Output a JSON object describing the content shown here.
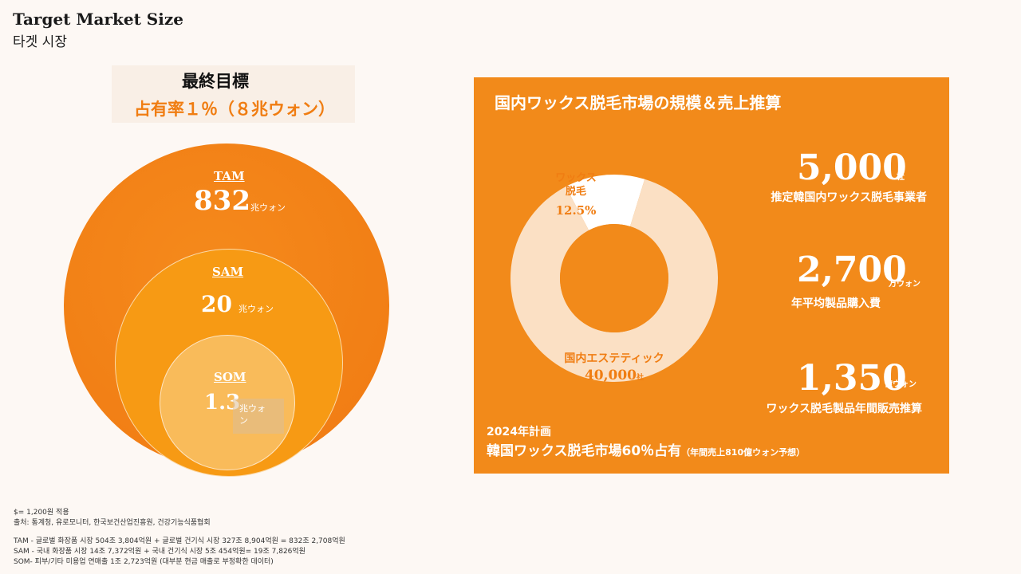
{
  "header": {
    "title": "Target Market Size",
    "subtitle": "타겟 시장"
  },
  "goal": {
    "title": "最終目標",
    "share": "占有率１％（８兆ウォン）"
  },
  "market_circles": [
    {
      "label": "TAM",
      "value": "832",
      "unit": "兆ウォン"
    },
    {
      "label": "SAM",
      "value": "20",
      "unit": "兆ウォン"
    },
    {
      "label": "SOM",
      "value": "1.3",
      "unit": "兆ウォ\nン"
    }
  ],
  "panel": {
    "title": "国内ワックス脱毛市場の規模＆売上推算",
    "donut": {
      "segments": [
        {
          "name": "ワックス脱毛",
          "line1": "ワックス",
          "line2": "脱毛",
          "value_label": "12.5%",
          "fraction": 0.125,
          "color": "#ffffff"
        },
        {
          "name": "国内エステティック",
          "value_label": "40,000",
          "value_unit": "社",
          "fraction": 0.875,
          "color": "#fbe0c4"
        }
      ],
      "hole_color": "#f28a1a"
    },
    "stats": [
      {
        "number": "5,000",
        "unit": "社",
        "desc": "推定韓国内ワックス脱毛事業者"
      },
      {
        "number": "2,700",
        "unit": "万ウォン",
        "desc": "年平均製品購入費"
      },
      {
        "number": "1,350",
        "unit": "億ウォン",
        "desc": "ワックス脱毛製品年間販売推算"
      }
    ],
    "plan": {
      "line1": "2024年計画",
      "line2": "韓国ワックス脱毛市場60％占有",
      "note": "（年間売上810億ウォン予想）"
    }
  },
  "footnotes": {
    "rate": "$= 1,200원 적용",
    "source": "출처: 통계청, 유로모니터, 한국보건산업진흥원, 건강기능식품협회",
    "tam": "TAM - 글로벌 화장품 시장 504조 3,804억원 + 글로벌 건기식 시장 327조 8,904억원 = 832조 2,708억원",
    "sam": "SAM - 국내 화장품 시장 14조 7,372억원 + 국내 건기식 시장 5조 454억원= 19조 7,826억원",
    "som": "SOM- 피부/기타 미용업 연매출 1조 2,723억원 (대부분 현금 매출로 부정확한 데이터)"
  }
}
